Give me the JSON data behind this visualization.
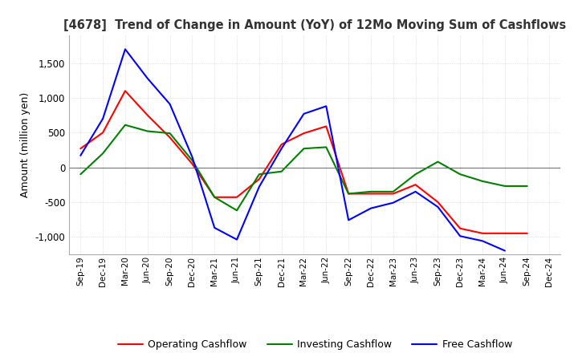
{
  "title": "[4678]  Trend of Change in Amount (YoY) of 12Mo Moving Sum of Cashflows",
  "ylabel": "Amount (million yen)",
  "ylim": [
    -1250,
    1900
  ],
  "yticks": [
    -1000,
    -500,
    0,
    500,
    1000,
    1500
  ],
  "x_labels": [
    "Sep-19",
    "Dec-19",
    "Mar-20",
    "Jun-20",
    "Sep-20",
    "Dec-20",
    "Mar-21",
    "Jun-21",
    "Sep-21",
    "Dec-21",
    "Mar-22",
    "Jun-22",
    "Sep-22",
    "Dec-22",
    "Mar-23",
    "Jun-23",
    "Sep-23",
    "Dec-23",
    "Mar-24",
    "Jun-24",
    "Sep-24",
    "Dec-24"
  ],
  "operating": [
    270,
    500,
    1100,
    750,
    430,
    50,
    -430,
    -430,
    -170,
    330,
    490,
    590,
    -380,
    -380,
    -380,
    -250,
    -500,
    -880,
    -950,
    -950,
    -950,
    null
  ],
  "investing": [
    -100,
    200,
    610,
    520,
    490,
    100,
    -430,
    -620,
    -100,
    -60,
    270,
    290,
    -380,
    -350,
    -350,
    -100,
    80,
    -100,
    -200,
    -270,
    -270,
    null
  ],
  "free_cf": [
    170,
    700,
    1700,
    1280,
    910,
    150,
    -870,
    -1040,
    -280,
    270,
    770,
    880,
    -760,
    -590,
    -510,
    -350,
    -570,
    -990,
    -1060,
    -1200,
    null,
    null
  ],
  "operating_color": "#ff0000",
  "investing_color": "#008000",
  "free_color": "#0000ff",
  "legend_labels": [
    "Operating Cashflow",
    "Investing Cashflow",
    "Free Cashflow"
  ],
  "background_color": "#ffffff",
  "grid_color": "#c8c8c8"
}
